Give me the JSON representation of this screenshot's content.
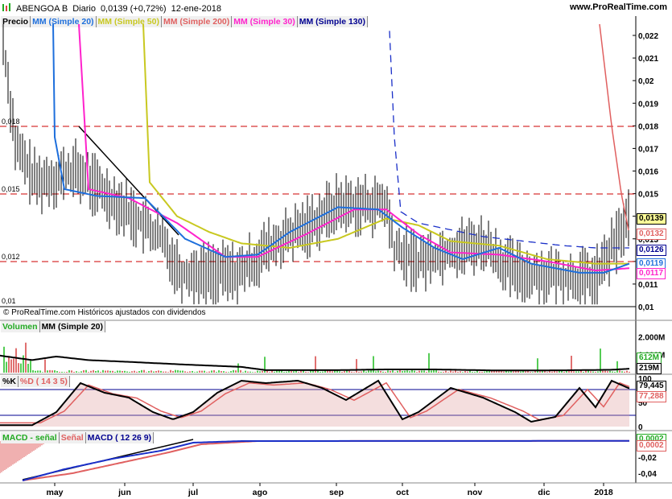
{
  "header": {
    "symbol": "ABENGOA B",
    "period": "Diario",
    "last": "0,0139 (+0,72%)",
    "date": "12-ene-2018",
    "site": "www.ProRealTime.com"
  },
  "price_legend": [
    {
      "label": "Precio",
      "color": "#000000"
    },
    {
      "label": "MM (Simple 20)",
      "color": "#1e6fdc"
    },
    {
      "label": "MM (Simple 50)",
      "color": "#c8c820"
    },
    {
      "label": "MM (Simple 200)",
      "color": "#e06060"
    },
    {
      "label": "MM (Simple 30)",
      "color": "#ff22cc"
    },
    {
      "label": "MM (Simple 130)",
      "color": "#000090"
    }
  ],
  "copyright": "© ProRealTime.com  Históricos ajustados con dividendos",
  "price_axis": [
    "0,022",
    "0,021",
    "0,02",
    "0,019",
    "0,018",
    "0,017",
    "0,016",
    "0,015",
    "0,014",
    "0,013",
    "0,012",
    "0,011",
    "0,01"
  ],
  "level_labels": [
    "0,018",
    "0,015",
    "0,012",
    "0,01"
  ],
  "price_badges": [
    {
      "text": "0,0139",
      "color": "#000000"
    },
    {
      "text": "0,0132",
      "color": "#e06060"
    },
    {
      "text": "0,0126",
      "color": "#000090"
    },
    {
      "text": "0,0119",
      "color": "#1e6fdc"
    },
    {
      "text": "0,0117",
      "color": "#ff22cc"
    }
  ],
  "volume_legend": [
    {
      "label": "Volumen",
      "color": "#22aa22"
    },
    {
      "label": "MM (Simple 20)",
      "color": "#000000"
    }
  ],
  "volume_axis": [
    "2.000M",
    "1.000M"
  ],
  "volume_badges": [
    {
      "text": "612M",
      "color": "#22aa22"
    },
    {
      "text": "219M",
      "color": "#000000"
    }
  ],
  "stoch_legend": [
    {
      "label": "%K",
      "color": "#000000"
    },
    {
      "label": "%D ( 14 3 5)",
      "color": "#e06060"
    }
  ],
  "stoch_axis": [
    "100",
    "50",
    "0"
  ],
  "stoch_badges": [
    {
      "text": "79,445",
      "color": "#000000"
    },
    {
      "text": "77,288",
      "color": "#e06060"
    }
  ],
  "macd_legend": [
    {
      "label": "MACD - señal",
      "color": "#22aa22"
    },
    {
      "label": "Señal",
      "color": "#e06060"
    },
    {
      "label": "MACD ( 12 26 9)",
      "color": "#000090"
    }
  ],
  "macd_axis": [
    "0",
    "-0,02",
    "-0,04"
  ],
  "macd_badges": [
    {
      "text": "0,0002",
      "color": "#22aa22"
    },
    {
      "text": "0,0002",
      "color": "#e06060"
    }
  ],
  "months": [
    "may",
    "jun",
    "jul",
    "ago",
    "sep",
    "oct",
    "nov",
    "dic",
    "2018"
  ],
  "chart_data": {
    "type": "line",
    "title": "ABENGOA B Diario",
    "ylim": [
      0.01,
      0.0225
    ],
    "horizontal_levels": [
      0.018,
      0.015,
      0.012,
      0.01
    ],
    "series": [
      {
        "name": "Precio",
        "x": [
          "may",
          "jun",
          "jul",
          "ago",
          "sep",
          "oct",
          "nov",
          "dic",
          "2018"
        ],
        "values": [
          0.016,
          0.014,
          0.011,
          0.0125,
          0.0145,
          0.013,
          0.0125,
          0.0115,
          0.0139
        ]
      },
      {
        "name": "MM (Simple 20)",
        "x": [
          "may",
          "jun",
          "jul",
          "ago",
          "sep",
          "oct",
          "nov",
          "dic",
          "2018"
        ],
        "values": [
          0.016,
          0.0145,
          0.012,
          0.0125,
          0.0143,
          0.0135,
          0.0122,
          0.0115,
          0.0119
        ]
      },
      {
        "name": "MM (Simple 50)",
        "x": [
          "may",
          "jun",
          "jul",
          "ago",
          "sep",
          "oct",
          "nov",
          "dic",
          "2018"
        ],
        "values": [
          0.022,
          0.0145,
          0.0135,
          0.0126,
          0.0136,
          0.0138,
          0.0127,
          0.0119,
          0.0119
        ]
      },
      {
        "name": "MM (Simple 30)",
        "x": [
          "may",
          "jun",
          "jul",
          "ago",
          "sep",
          "oct",
          "nov",
          "dic",
          "2018"
        ],
        "values": [
          0.0225,
          0.0146,
          0.0122,
          0.0125,
          0.0143,
          0.0136,
          0.0122,
          0.0116,
          0.0117
        ]
      },
      {
        "name": "MM (Simple 130)",
        "x": [
          "sep",
          "oct",
          "nov",
          "dic",
          "2018"
        ],
        "values": [
          0.022,
          0.0135,
          0.0132,
          0.0127,
          0.0126
        ]
      },
      {
        "name": "MM (Simple 200)",
        "x": [
          "dic",
          "2018"
        ],
        "values": [
          0.0225,
          0.0132
        ]
      }
    ]
  }
}
